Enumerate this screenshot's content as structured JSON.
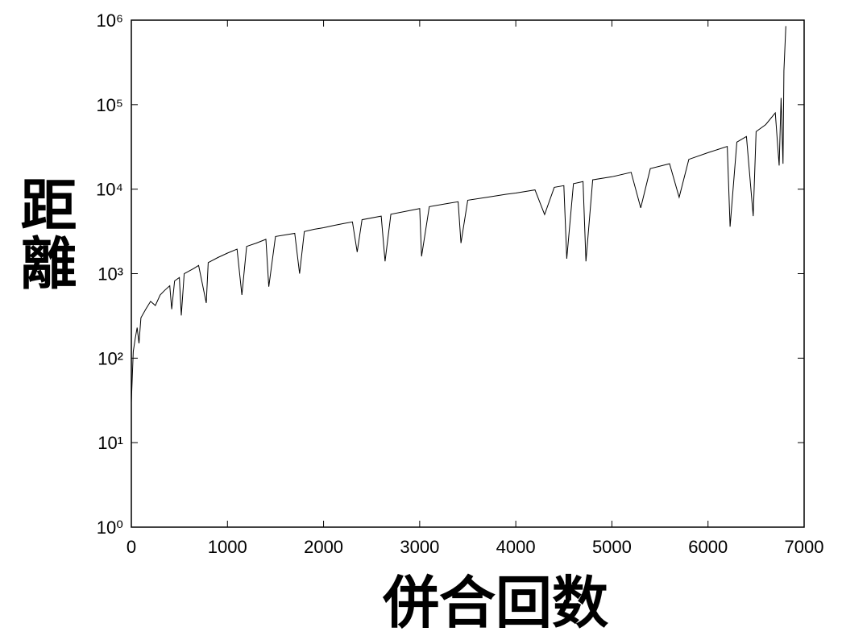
{
  "chart_data": {
    "type": "line",
    "x_label": "併合回数",
    "y_label": "距離",
    "x": [
      0,
      20,
      40,
      60,
      80,
      100,
      150,
      200,
      250,
      300,
      350,
      400,
      420,
      450,
      500,
      520,
      550,
      650,
      700,
      780,
      800,
      900,
      1000,
      1100,
      1150,
      1200,
      1300,
      1400,
      1430,
      1500,
      1700,
      1750,
      1800,
      1900,
      2000,
      2100,
      2200,
      2300,
      2350,
      2400,
      2600,
      2640,
      2700,
      2900,
      3000,
      3020,
      3100,
      3300,
      3400,
      3430,
      3500,
      3700,
      3900,
      4000,
      4200,
      4300,
      4400,
      4500,
      4530,
      4600,
      4700,
      4730,
      4800,
      5000,
      5200,
      5300,
      5400,
      5600,
      5700,
      5800,
      6000,
      6200,
      6230,
      6300,
      6400,
      6470,
      6500,
      6600,
      6700,
      6740,
      6760,
      6780,
      6790,
      6810
    ],
    "values": [
      30,
      120,
      170,
      230,
      150,
      300,
      380,
      470,
      420,
      560,
      640,
      720,
      380,
      820,
      900,
      320,
      1000,
      1150,
      1250,
      450,
      1350,
      1550,
      1750,
      1950,
      560,
      2100,
      2300,
      2550,
      700,
      2750,
      3000,
      1000,
      3150,
      3350,
      3500,
      3700,
      3900,
      4100,
      1800,
      4350,
      4800,
      1400,
      5050,
      5600,
      5900,
      1600,
      6200,
      6800,
      7100,
      2300,
      7400,
      8000,
      8700,
      9000,
      9800,
      5000,
      10500,
      11000,
      1500,
      11600,
      12300,
      1400,
      12900,
      14000,
      15800,
      6000,
      17500,
      20000,
      8000,
      22500,
      27000,
      32000,
      3600,
      36000,
      42000,
      4800,
      48000,
      58000,
      80000,
      19000,
      120000,
      20000,
      250000,
      850000
    ],
    "color": "#000000",
    "xlim": [
      0,
      7000
    ],
    "xticks": [
      0,
      1000,
      2000,
      3000,
      4000,
      5000,
      6000,
      7000
    ],
    "ylim": [
      1,
      1000000
    ],
    "yscale": "log",
    "yticks": [
      {
        "value": 1,
        "label": "10⁰"
      },
      {
        "value": 10,
        "label": "10¹"
      },
      {
        "value": 100,
        "label": "10²"
      },
      {
        "value": 1000,
        "label": "10³"
      },
      {
        "value": 10000,
        "label": "10⁴"
      },
      {
        "value": 100000,
        "label": "10⁵"
      },
      {
        "value": 1000000,
        "label": "10⁶"
      }
    ]
  }
}
